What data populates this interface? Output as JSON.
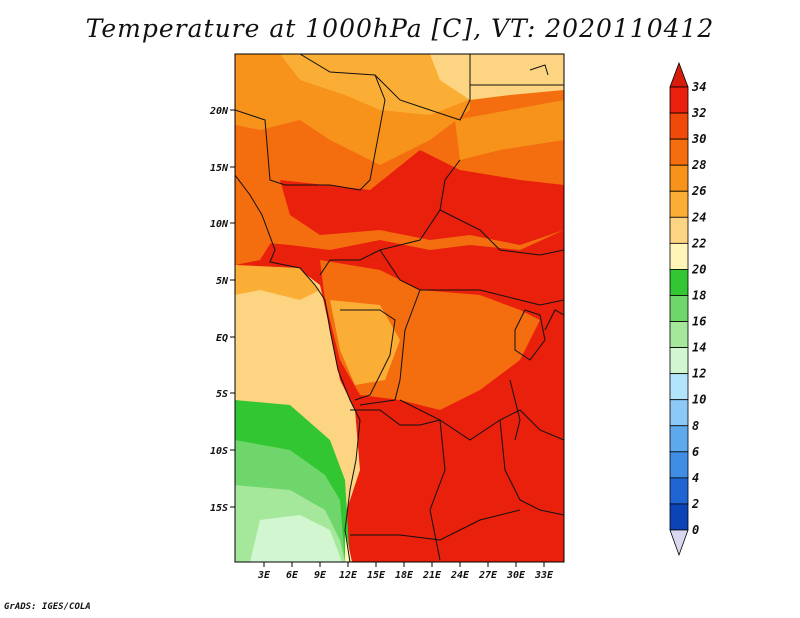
{
  "title": "Temperature at 1000hPa [C], VT: 2020110412",
  "credit": "GrADS: IGES/COLA",
  "y_ticks": [
    "20N",
    "15N",
    "10N",
    "5N",
    "EQ",
    "5S",
    "10S",
    "15S"
  ],
  "x_ticks": [
    "3E",
    "6E",
    "9E",
    "12E",
    "15E",
    "18E",
    "21E",
    "24E",
    "27E",
    "30E",
    "33E"
  ],
  "colorbar": {
    "labels": [
      "34",
      "32",
      "30",
      "28",
      "26",
      "24",
      "22",
      "20",
      "18",
      "16",
      "14",
      "12",
      "10",
      "8",
      "6",
      "4",
      "2",
      "0"
    ],
    "colors": [
      "#e8200c",
      "#f04a0a",
      "#f46d0e",
      "#f7921a",
      "#fbae36",
      "#fdd582",
      "#fff5b8",
      "#33c633",
      "#6ed66a",
      "#a5e89c",
      "#d2f7d0",
      "#b2e4fb",
      "#8cc9f6",
      "#5ea9ec",
      "#3f8ee4",
      "#1f66d4",
      "#0c43b6",
      "#0b1a80"
    ],
    "top_color": "#d61c0b",
    "bottom_color": "#d8d8f0"
  }
}
